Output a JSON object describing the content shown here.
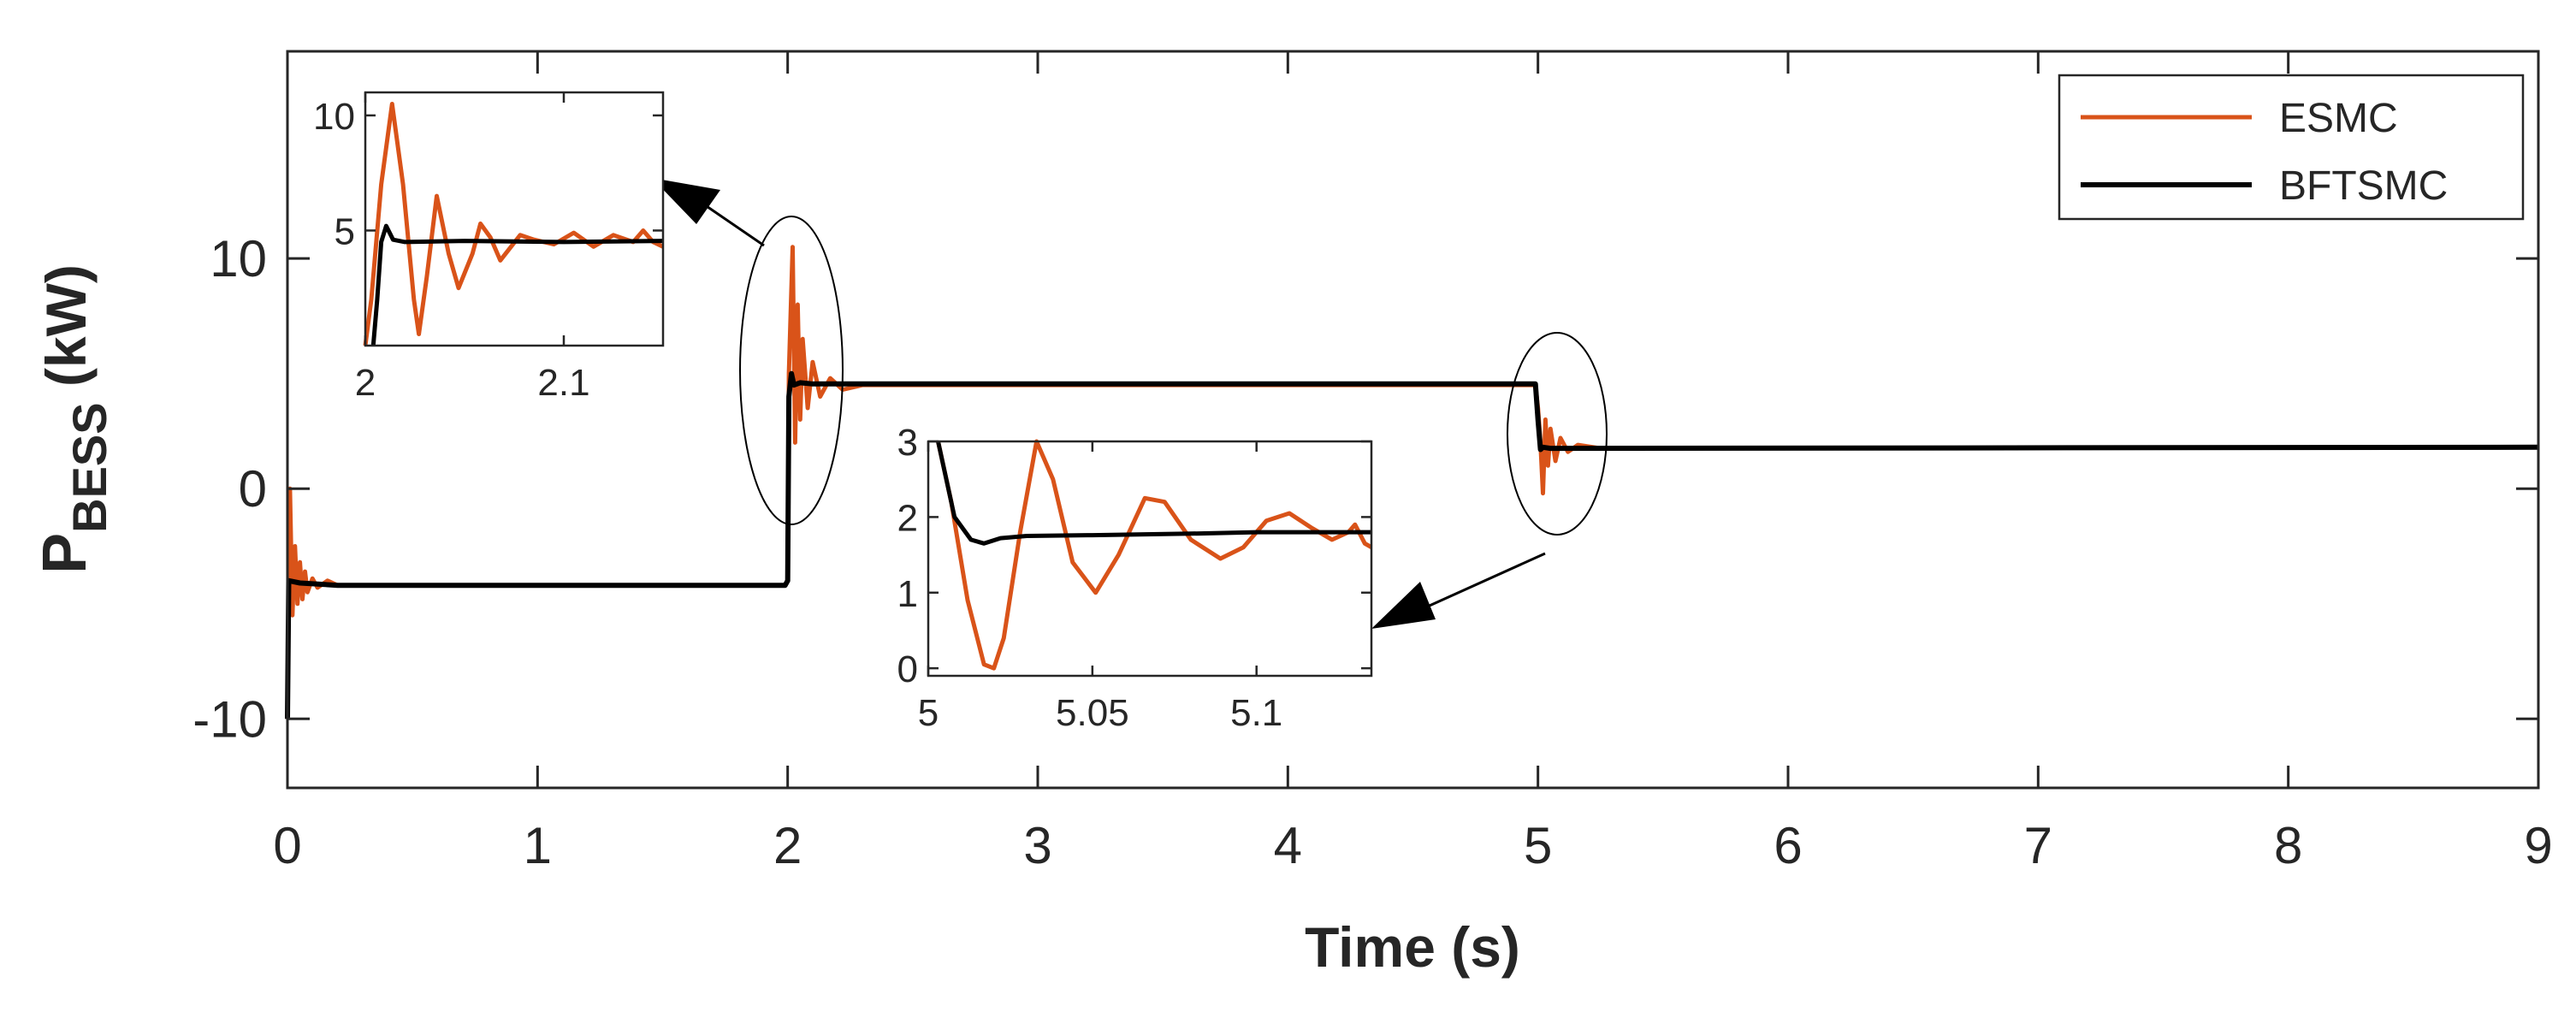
{
  "chart_data": {
    "type": "line",
    "xlabel": "Time (s)",
    "ylabel": {
      "main": "P",
      "sub": "BESS",
      "unit": " (kW)"
    },
    "xlim": [
      0,
      9
    ],
    "ylim": [
      -13,
      19
    ],
    "xticks": [
      "0",
      "1",
      "2",
      "3",
      "4",
      "5",
      "6",
      "7",
      "8",
      "9"
    ],
    "yticks": [
      {
        "value": -10,
        "label": "-10"
      },
      {
        "value": 0,
        "label": "0"
      },
      {
        "value": 10,
        "label": "10"
      }
    ],
    "grid": false,
    "legend_position": "top-right",
    "colors": {
      "ESMC": "#D95319",
      "BFTSMC": "#000000"
    },
    "series": [
      {
        "name": "ESMC",
        "points": [
          [
            0,
            -10
          ],
          [
            0.01,
            0
          ],
          [
            0.02,
            -5.5
          ],
          [
            0.03,
            -2.5
          ],
          [
            0.04,
            -5
          ],
          [
            0.05,
            -3.2
          ],
          [
            0.06,
            -4.8
          ],
          [
            0.07,
            -3.6
          ],
          [
            0.08,
            -4.5
          ],
          [
            0.1,
            -3.9
          ],
          [
            0.12,
            -4.3
          ],
          [
            0.16,
            -4
          ],
          [
            0.2,
            -4.2
          ],
          [
            1.99,
            -4.2
          ],
          [
            2.0,
            -4
          ],
          [
            2.005,
            5
          ],
          [
            2.02,
            10.5
          ],
          [
            2.03,
            2
          ],
          [
            2.04,
            8
          ],
          [
            2.05,
            3
          ],
          [
            2.06,
            6.5
          ],
          [
            2.08,
            3.5
          ],
          [
            2.1,
            5.5
          ],
          [
            2.13,
            4
          ],
          [
            2.17,
            4.8
          ],
          [
            2.22,
            4.3
          ],
          [
            2.3,
            4.5
          ],
          [
            4.99,
            4.5
          ],
          [
            5.0,
            3.5
          ],
          [
            5.01,
            2
          ],
          [
            5.02,
            -0.2
          ],
          [
            5.03,
            3
          ],
          [
            5.04,
            1
          ],
          [
            5.05,
            2.6
          ],
          [
            5.07,
            1.2
          ],
          [
            5.09,
            2.2
          ],
          [
            5.12,
            1.6
          ],
          [
            5.16,
            1.9
          ],
          [
            5.25,
            1.75
          ],
          [
            9,
            1.8
          ]
        ]
      },
      {
        "name": "BFTSMC",
        "points": [
          [
            0,
            -10
          ],
          [
            0.005,
            -4
          ],
          [
            0.05,
            -4.1
          ],
          [
            0.2,
            -4.2
          ],
          [
            1.99,
            -4.2
          ],
          [
            2.0,
            -4
          ],
          [
            2.005,
            4
          ],
          [
            2.015,
            5
          ],
          [
            2.025,
            4.5
          ],
          [
            2.05,
            4.6
          ],
          [
            2.1,
            4.55
          ],
          [
            4.99,
            4.55
          ],
          [
            5.0,
            3
          ],
          [
            5.01,
            1.7
          ],
          [
            5.02,
            1.8
          ],
          [
            5.05,
            1.75
          ],
          [
            9,
            1.8
          ]
        ]
      }
    ],
    "insets": [
      {
        "xlim": [
          2.0,
          2.15
        ],
        "ylim": [
          0,
          11
        ],
        "xticks": [
          {
            "value": 2.0,
            "label": "2"
          },
          {
            "value": 2.1,
            "label": "2.1"
          }
        ],
        "yticks": [
          {
            "value": 5,
            "label": "5"
          },
          {
            "value": 10,
            "label": "10"
          }
        ],
        "series": [
          {
            "name": "ESMC",
            "points": [
              [
                2.0,
                0
              ],
              [
                2.003,
                2
              ],
              [
                2.008,
                7
              ],
              [
                2.0135,
                10.5
              ],
              [
                2.019,
                7
              ],
              [
                2.0245,
                2
              ],
              [
                2.027,
                0.5
              ],
              [
                2.031,
                3
              ],
              [
                2.036,
                6.5
              ],
              [
                2.042,
                4
              ],
              [
                2.047,
                2.5
              ],
              [
                2.054,
                4
              ],
              [
                2.058,
                5.3
              ],
              [
                2.063,
                4.7
              ],
              [
                2.068,
                3.7
              ],
              [
                2.078,
                4.8
              ],
              [
                2.085,
                4.6
              ],
              [
                2.095,
                4.4
              ],
              [
                2.105,
                4.9
              ],
              [
                2.115,
                4.3
              ],
              [
                2.125,
                4.8
              ],
              [
                2.135,
                4.5
              ],
              [
                2.14,
                5
              ],
              [
                2.145,
                4.5
              ],
              [
                2.15,
                4.3
              ]
            ]
          },
          {
            "name": "BFTSMC",
            "points": [
              [
                2.004,
                0
              ],
              [
                2.006,
                2
              ],
              [
                2.008,
                4.5
              ],
              [
                2.0105,
                5.2
              ],
              [
                2.014,
                4.6
              ],
              [
                2.02,
                4.5
              ],
              [
                2.05,
                4.55
              ],
              [
                2.1,
                4.5
              ],
              [
                2.15,
                4.55
              ]
            ]
          }
        ]
      },
      {
        "xlim": [
          5.0,
          5.135
        ],
        "ylim": [
          -0.1,
          3
        ],
        "xticks": [
          {
            "value": 5.0,
            "label": "5"
          },
          {
            "value": 5.05,
            "label": "5.05"
          },
          {
            "value": 5.1,
            "label": "5.1"
          }
        ],
        "yticks": [
          {
            "value": 0,
            "label": "0"
          },
          {
            "value": 1,
            "label": "1"
          },
          {
            "value": 2,
            "label": "2"
          },
          {
            "value": 3,
            "label": "3"
          }
        ],
        "series": [
          {
            "name": "ESMC",
            "points": [
              [
                5.003,
                3
              ],
              [
                5.007,
                2.2
              ],
              [
                5.012,
                0.9
              ],
              [
                5.017,
                0.05
              ],
              [
                5.02,
                0
              ],
              [
                5.023,
                0.4
              ],
              [
                5.028,
                1.8
              ],
              [
                5.033,
                3.0
              ],
              [
                5.038,
                2.5
              ],
              [
                5.044,
                1.4
              ],
              [
                5.051,
                1.0
              ],
              [
                5.058,
                1.5
              ],
              [
                5.066,
                2.25
              ],
              [
                5.072,
                2.2
              ],
              [
                5.08,
                1.7
              ],
              [
                5.089,
                1.45
              ],
              [
                5.096,
                1.6
              ],
              [
                5.103,
                1.95
              ],
              [
                5.11,
                2.05
              ],
              [
                5.117,
                1.85
              ],
              [
                5.123,
                1.7
              ],
              [
                5.128,
                1.8
              ],
              [
                5.13,
                1.9
              ],
              [
                5.133,
                1.65
              ],
              [
                5.135,
                1.6
              ]
            ]
          },
          {
            "name": "BFTSMC",
            "points": [
              [
                5.003,
                3
              ],
              [
                5.008,
                2.0
              ],
              [
                5.013,
                1.7
              ],
              [
                5.017,
                1.65
              ],
              [
                5.022,
                1.72
              ],
              [
                5.03,
                1.75
              ],
              [
                5.05,
                1.76
              ],
              [
                5.08,
                1.78
              ],
              [
                5.1,
                1.8
              ],
              [
                5.135,
                1.8
              ]
            ]
          }
        ]
      }
    ]
  }
}
